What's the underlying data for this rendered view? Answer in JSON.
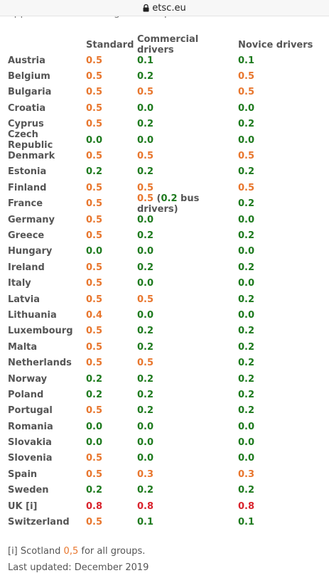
{
  "browser": {
    "url": "etsc.eu",
    "lock_icon": "lock-icon"
  },
  "intro_text": "applicable. Shown in grammes per litre.",
  "headers": {
    "country": "",
    "standard": "Standard",
    "commercial": "Commercial drivers",
    "novice": "Novice drivers"
  },
  "colors": {
    "orange": "#e8762d",
    "green": "#1e7a1e",
    "red": "#d9232d"
  },
  "rows": [
    {
      "country": "Austria",
      "standard": "0.5",
      "s_color": "orange",
      "commercial": "0.1",
      "c_color": "green",
      "novice": "0.1",
      "n_color": "green"
    },
    {
      "country": "Belgium",
      "standard": "0.5",
      "s_color": "orange",
      "commercial": "0.2",
      "c_color": "green",
      "novice": "0.5",
      "n_color": "orange"
    },
    {
      "country": "Bulgaria",
      "standard": "0.5",
      "s_color": "orange",
      "commercial": "0.5",
      "c_color": "orange",
      "novice": "0.5",
      "n_color": "orange"
    },
    {
      "country": "Croatia",
      "standard": "0.5",
      "s_color": "orange",
      "commercial": "0.0",
      "c_color": "green",
      "novice": "0.0",
      "n_color": "green"
    },
    {
      "country": "Cyprus",
      "standard": "0.5",
      "s_color": "orange",
      "commercial": "0.2",
      "c_color": "green",
      "novice": "0.2",
      "n_color": "green"
    },
    {
      "country": "Czech Republic",
      "standard": "0.0",
      "s_color": "green",
      "commercial": "0.0",
      "c_color": "green",
      "novice": "0.0",
      "n_color": "green"
    },
    {
      "country": "Denmark",
      "standard": "0.5",
      "s_color": "orange",
      "commercial": "0.5",
      "c_color": "orange",
      "novice": "0.5",
      "n_color": "orange"
    },
    {
      "country": "Estonia",
      "standard": "0.2",
      "s_color": "green",
      "commercial": "0.2",
      "c_color": "green",
      "novice": "0.2",
      "n_color": "green"
    },
    {
      "country": "Finland",
      "standard": "0.5",
      "s_color": "orange",
      "commercial": "0.5",
      "c_color": "orange",
      "novice": "0.5",
      "n_color": "orange"
    },
    {
      "country": "France",
      "standard": "0.5",
      "s_color": "orange",
      "commercial": "0.5",
      "c_color": "orange",
      "commercial_note_open": " (",
      "commercial_note_value": "0.2",
      "commercial_note_text": " bus drivers)",
      "novice": "0.2",
      "n_color": "green"
    },
    {
      "country": "Germany",
      "standard": "0.5",
      "s_color": "orange",
      "commercial": "0.0",
      "c_color": "green",
      "novice": "0.0",
      "n_color": "green"
    },
    {
      "country": "Greece",
      "standard": "0.5",
      "s_color": "orange",
      "commercial": "0.2",
      "c_color": "green",
      "novice": "0.2",
      "n_color": "green"
    },
    {
      "country": "Hungary",
      "standard": "0.0",
      "s_color": "green",
      "commercial": "0.0",
      "c_color": "green",
      "novice": "0.0",
      "n_color": "green"
    },
    {
      "country": "Ireland",
      "standard": "0.5",
      "s_color": "orange",
      "commercial": "0.2",
      "c_color": "green",
      "novice": "0.2",
      "n_color": "green"
    },
    {
      "country": "Italy",
      "standard": "0.5",
      "s_color": "orange",
      "commercial": "0.0",
      "c_color": "green",
      "novice": "0.0",
      "n_color": "green"
    },
    {
      "country": "Latvia",
      "standard": "0.5",
      "s_color": "orange",
      "commercial": "0.5",
      "c_color": "orange",
      "novice": "0.2",
      "n_color": "green"
    },
    {
      "country": "Lithuania",
      "standard": "0.4",
      "s_color": "orange",
      "commercial": "0.0",
      "c_color": "green",
      "novice": "0.0",
      "n_color": "green"
    },
    {
      "country": "Luxembourg",
      "standard": "0.5",
      "s_color": "orange",
      "commercial": "0.2",
      "c_color": "green",
      "novice": "0.2",
      "n_color": "green"
    },
    {
      "country": "Malta",
      "standard": "0.5",
      "s_color": "orange",
      "commercial": "0.2",
      "c_color": "green",
      "novice": "0.2",
      "n_color": "green"
    },
    {
      "country": "Netherlands",
      "standard": "0.5",
      "s_color": "orange",
      "commercial": "0.5",
      "c_color": "orange",
      "novice": "0.2",
      "n_color": "green"
    },
    {
      "country": "Norway",
      "standard": "0.2",
      "s_color": "green",
      "commercial": "0.2",
      "c_color": "green",
      "novice": "0.2",
      "n_color": "green"
    },
    {
      "country": "Poland",
      "standard": "0.2",
      "s_color": "green",
      "commercial": "0.2",
      "c_color": "green",
      "novice": "0.2",
      "n_color": "green"
    },
    {
      "country": "Portugal",
      "standard": "0.5",
      "s_color": "orange",
      "commercial": "0.2",
      "c_color": "green",
      "novice": "0.2",
      "n_color": "green"
    },
    {
      "country": "Romania",
      "standard": "0.0",
      "s_color": "green",
      "commercial": "0.0",
      "c_color": "green",
      "novice": "0.0",
      "n_color": "green"
    },
    {
      "country": "Slovakia",
      "standard": "0.0",
      "s_color": "green",
      "commercial": "0.0",
      "c_color": "green",
      "novice": "0.0",
      "n_color": "green"
    },
    {
      "country": "Slovenia",
      "standard": "0.5",
      "s_color": "orange",
      "commercial": "0.0",
      "c_color": "green",
      "novice": "0.0",
      "n_color": "green"
    },
    {
      "country": "Spain",
      "standard": "0.5",
      "s_color": "orange",
      "commercial": "0.3",
      "c_color": "orange",
      "novice": "0.3",
      "n_color": "orange"
    },
    {
      "country": "Sweden",
      "standard": "0.2",
      "s_color": "green",
      "commercial": "0.2",
      "c_color": "green",
      "novice": "0.2",
      "n_color": "green"
    },
    {
      "country": "UK [i]",
      "standard": "0.8",
      "s_color": "red",
      "commercial": "0.8",
      "c_color": "red",
      "novice": "0.8",
      "n_color": "red"
    },
    {
      "country": "Switzerland",
      "standard": "0.5",
      "s_color": "orange",
      "commercial": "0.1",
      "c_color": "green",
      "novice": "0.1",
      "n_color": "green"
    }
  ],
  "footnote": {
    "prefix": "[i] Scotland ",
    "value": "0,5",
    "suffix": " for all groups."
  },
  "last_updated": "Last updated: December 2019"
}
